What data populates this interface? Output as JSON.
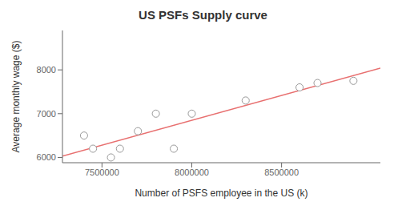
{
  "chart_data": {
    "type": "scatter",
    "title": "US PSFs Supply curve",
    "xlabel": "Number of PSFS employee in the US (k)",
    "ylabel": "Average monthly wage ($)",
    "series": [
      {
        "type": "scatter",
        "color": "#999999",
        "marker": "circle",
        "x": [
          7400000,
          7450000,
          7550000,
          7600000,
          7700000,
          7800000,
          7900000,
          8000000,
          8300000,
          8600000,
          8700000,
          8900000
        ],
        "values": [
          6500,
          6200,
          6000,
          6200,
          6600,
          7000,
          6200,
          7000,
          7300,
          7600,
          7700,
          7750
        ]
      },
      {
        "type": "line",
        "color": "#e87070",
        "line_style": "solid",
        "x": [
          7280000,
          9050000
        ],
        "values": [
          6029.47,
          8039.13
        ]
      }
    ],
    "xlim": [
      7280000,
      9050000
    ],
    "ylim": [
      5880,
      8900
    ],
    "xticks": [
      7500000,
      8000000,
      8500000
    ],
    "yticks": [
      6000,
      7000,
      8000
    ],
    "grid": false
  }
}
